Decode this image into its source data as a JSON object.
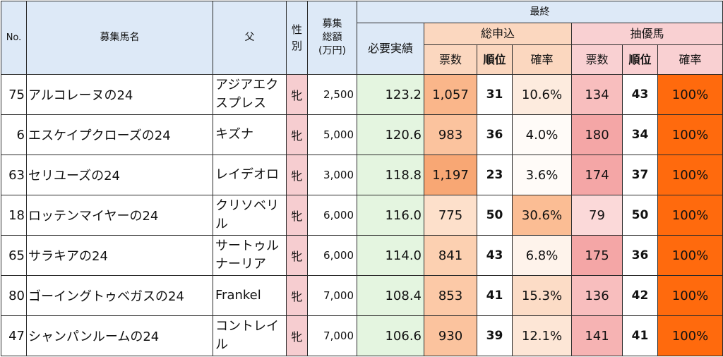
{
  "header": {
    "no": "No.",
    "horse_name": "募集馬名",
    "father": "父",
    "sex_line1": "性",
    "sex_line2": "別",
    "amount_line1": "募集",
    "amount_line2": "総額",
    "amount_unit": "(万円)",
    "final": "最終",
    "required": "必要実績",
    "sou_moushikomi": "総申込",
    "chuyu": "抽優馬",
    "votes": "票数",
    "rank": "順位",
    "prob": "確率"
  },
  "rows": [
    {
      "no": "75",
      "name": "アルコレーヌの24",
      "father": "アジアエクスプレス",
      "sex": "牝",
      "amount": "2,500",
      "required": "123.2",
      "sou_votes": "1,057",
      "sou_rank": "31",
      "sou_prob": "10.6%",
      "chu_votes": "134",
      "chu_rank": "43",
      "chu_prob": "100%"
    },
    {
      "no": "6",
      "name": "エスケイプクローズの24",
      "father": "キズナ",
      "sex": "牝",
      "amount": "5,000",
      "required": "120.6",
      "sou_votes": "983",
      "sou_rank": "36",
      "sou_prob": "4.0%",
      "chu_votes": "180",
      "chu_rank": "34",
      "chu_prob": "100%"
    },
    {
      "no": "63",
      "name": "セリユーズの24",
      "father": "レイデオロ",
      "sex": "牝",
      "amount": "3,000",
      "required": "118.8",
      "sou_votes": "1,197",
      "sou_rank": "23",
      "sou_prob": "3.6%",
      "chu_votes": "174",
      "chu_rank": "37",
      "chu_prob": "100%"
    },
    {
      "no": "18",
      "name": "ロッテンマイヤーの24",
      "father": "クリソベリル",
      "sex": "牝",
      "amount": "6,000",
      "required": "116.0",
      "sou_votes": "775",
      "sou_rank": "50",
      "sou_prob": "30.6%",
      "chu_votes": "79",
      "chu_rank": "50",
      "chu_prob": "100%"
    },
    {
      "no": "65",
      "name": "サラキアの24",
      "father": "サートゥルナーリア",
      "sex": "牝",
      "amount": "6,000",
      "required": "114.0",
      "sou_votes": "841",
      "sou_rank": "43",
      "sou_prob": "6.8%",
      "chu_votes": "175",
      "chu_rank": "36",
      "chu_prob": "100%"
    },
    {
      "no": "80",
      "name": "ゴーイングトゥベガスの24",
      "father": "Frankel",
      "sex": "牝",
      "amount": "7,000",
      "required": "108.4",
      "sou_votes": "853",
      "sou_rank": "41",
      "sou_prob": "15.3%",
      "chu_votes": "136",
      "chu_rank": "42",
      "chu_prob": "100%"
    },
    {
      "no": "47",
      "name": "シャンパンルームの24",
      "father": "コントレイル",
      "sex": "牝",
      "amount": "7,000",
      "required": "106.6",
      "sou_votes": "930",
      "sou_rank": "39",
      "sou_prob": "12.1%",
      "chu_votes": "141",
      "chu_rank": "41",
      "chu_prob": "100%"
    }
  ],
  "colors": {
    "header_bg": "#dde9f7",
    "sou_header_bg": "#fbd7bf",
    "chu_header_bg": "#f9d0d2",
    "sex_bg": "#f6cdd0",
    "required_bg": "#e4f5e0",
    "sou_votes_scale": [
      {
        "min": 1150,
        "color": "#f8a774"
      },
      {
        "min": 1000,
        "color": "#fab68a"
      },
      {
        "min": 900,
        "color": "#fbc39e"
      },
      {
        "min": 850,
        "color": "#fcc9a7"
      },
      {
        "min": 800,
        "color": "#fcd0b1"
      },
      {
        "min": 0,
        "color": "#fde0cb"
      }
    ],
    "sou_prob_scale": [
      {
        "min": 25,
        "color": "#fbbd94"
      },
      {
        "min": 15,
        "color": "#fcdcc6"
      },
      {
        "min": 12,
        "color": "#fde6d6"
      },
      {
        "min": 10,
        "color": "#fdebde"
      },
      {
        "min": 6,
        "color": "#fef3eb"
      },
      {
        "min": 0,
        "color": "#fffbf8"
      }
    ],
    "chu_votes_scale": [
      {
        "min": 170,
        "color": "#f4a6a6"
      },
      {
        "min": 140,
        "color": "#f6b3b3"
      },
      {
        "min": 130,
        "color": "#f8bebe"
      },
      {
        "min": 0,
        "color": "#fbd9d9"
      }
    ],
    "chu_prob_bg": "#ff6a0d"
  }
}
